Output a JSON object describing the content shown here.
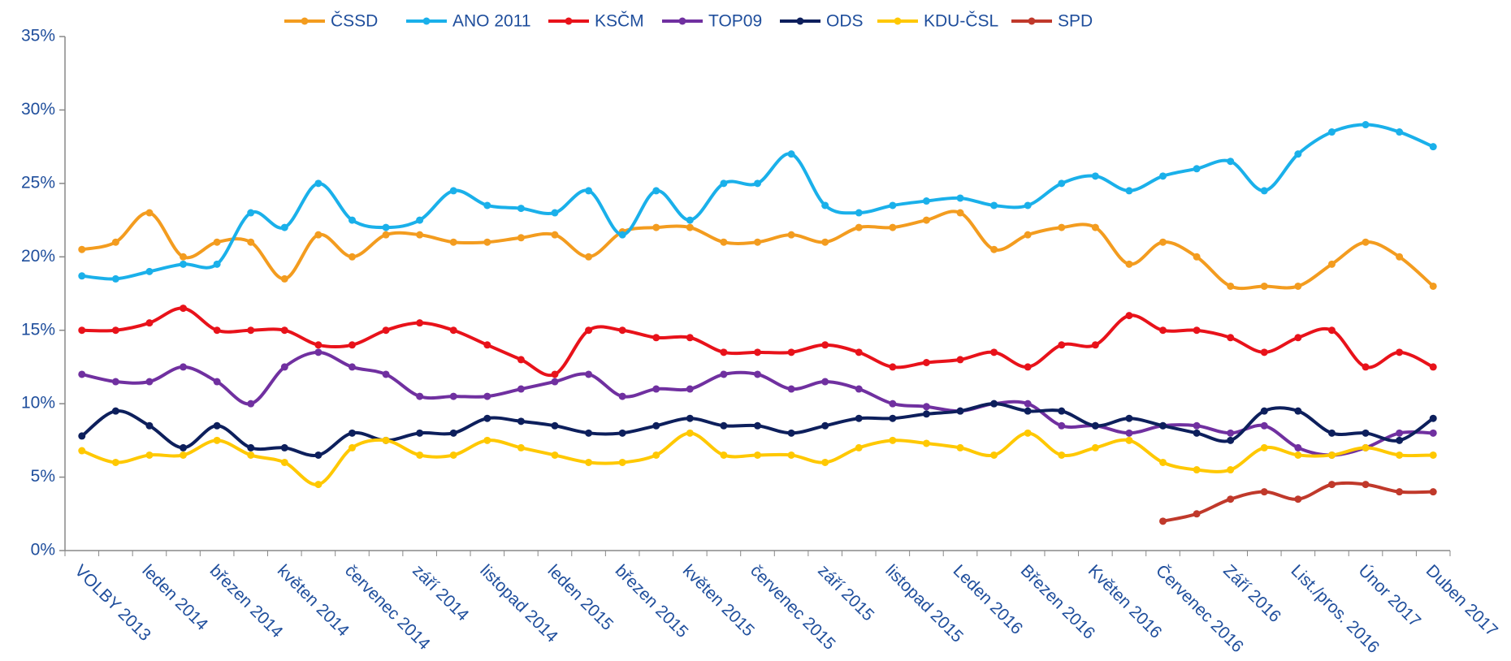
{
  "chart_data": {
    "type": "line",
    "categories": [
      "VOLBY 2013",
      null,
      "leden  2014",
      null,
      "březen 2014",
      null,
      "květen 2014",
      null,
      "červenec 2014",
      null,
      "září 2014",
      null,
      "listopad 2014",
      null,
      "leden 2015",
      null,
      "březen 2015",
      null,
      "květen 2015",
      null,
      "červenec 2015",
      null,
      "září 2015",
      null,
      "listopad 2015",
      null,
      "Leden 2016",
      null,
      "Březen 2016",
      null,
      "Květen 2016",
      null,
      "Červenec 2016",
      null,
      "Září 2016",
      null,
      "List./pros. 2016",
      null,
      "Únor 2017",
      null,
      "Duben 2017"
    ],
    "series": [
      {
        "name": "ČSSD",
        "color": "#f39c1f",
        "values": [
          20.5,
          21,
          23,
          20,
          21,
          21,
          18.5,
          21.5,
          20,
          21.5,
          21.5,
          21,
          21,
          21.3,
          21.5,
          20,
          21.7,
          22,
          22,
          21,
          21,
          21.5,
          21,
          22,
          22,
          22.5,
          23,
          20.5,
          21.5,
          22,
          22,
          19.5,
          21,
          20,
          18,
          18,
          18,
          19.5,
          21,
          20,
          18
        ]
      },
      {
        "name": "ANO 2011",
        "color": "#1ab0ea",
        "values": [
          18.7,
          18.5,
          19,
          19.5,
          19.5,
          23,
          22,
          25,
          22.5,
          22,
          22.5,
          24.5,
          23.5,
          23.3,
          23,
          24.5,
          21.5,
          24.5,
          22.5,
          25,
          25,
          27,
          23.5,
          23,
          23.5,
          23.8,
          24,
          23.5,
          23.5,
          25,
          25.5,
          24.5,
          25.5,
          26,
          26.5,
          24.5,
          27,
          28.5,
          29,
          28.5,
          27.5
        ]
      },
      {
        "name": "KSČM",
        "color": "#e8121a",
        "values": [
          15,
          15,
          15.5,
          16.5,
          15,
          15,
          15,
          14,
          14,
          15,
          15.5,
          15,
          14,
          13,
          12,
          15,
          15,
          14.5,
          14.5,
          13.5,
          13.5,
          13.5,
          14,
          13.5,
          12.5,
          12.8,
          13,
          13.5,
          12.5,
          14,
          14,
          16,
          15,
          15,
          14.5,
          13.5,
          14.5,
          15,
          12.5,
          13.5,
          12.5
        ]
      },
      {
        "name": "TOP09",
        "color": "#7030a0",
        "values": [
          12,
          11.5,
          11.5,
          12.5,
          11.5,
          10,
          12.5,
          13.5,
          12.5,
          12,
          10.5,
          10.5,
          10.5,
          11,
          11.5,
          12,
          10.5,
          11,
          11,
          12,
          12,
          11,
          11.5,
          11,
          10,
          9.8,
          9.5,
          10,
          10,
          8.5,
          8.5,
          8,
          8.5,
          8.5,
          8,
          8.5,
          7,
          6.5,
          7,
          8,
          8
        ]
      },
      {
        "name": "ODS",
        "color": "#0d1f5c",
        "values": [
          7.8,
          9.5,
          8.5,
          7,
          8.5,
          7,
          7,
          6.5,
          8,
          7.5,
          8,
          8,
          9,
          8.8,
          8.5,
          8,
          8,
          8.5,
          9,
          8.5,
          8.5,
          8,
          8.5,
          9,
          9,
          9.3,
          9.5,
          10,
          9.5,
          9.5,
          8.5,
          9,
          8.5,
          8,
          7.5,
          9.5,
          9.5,
          8,
          8,
          7.5,
          9
        ]
      },
      {
        "name": "KDU-ČSL",
        "color": "#ffc800",
        "values": [
          6.8,
          6,
          6.5,
          6.5,
          7.5,
          6.5,
          6,
          4.5,
          7,
          7.5,
          6.5,
          6.5,
          7.5,
          7,
          6.5,
          6,
          6,
          6.5,
          8,
          6.5,
          6.5,
          6.5,
          6,
          7,
          7.5,
          7.3,
          7,
          6.5,
          8,
          6.5,
          7,
          7.5,
          6,
          5.5,
          5.5,
          7,
          6.5,
          6.5,
          7,
          6.5,
          6.5
        ]
      },
      {
        "name": "SPD",
        "color": "#c0392b",
        "values": [
          null,
          null,
          null,
          null,
          null,
          null,
          null,
          null,
          null,
          null,
          null,
          null,
          null,
          null,
          null,
          null,
          null,
          null,
          null,
          null,
          null,
          null,
          null,
          null,
          null,
          null,
          null,
          null,
          null,
          null,
          null,
          null,
          2,
          2.5,
          3.5,
          4,
          3.5,
          4.5,
          4.5,
          4,
          4
        ]
      }
    ],
    "ylim": [
      0,
      35
    ],
    "yticks": [
      {
        "value": 0,
        "label": "0%"
      },
      {
        "value": 5,
        "label": "5%"
      },
      {
        "value": 10,
        "label": "10%"
      },
      {
        "value": 15,
        "label": "15%"
      },
      {
        "value": 20,
        "label": "20%"
      },
      {
        "value": 25,
        "label": "25%"
      },
      {
        "value": 30,
        "label": "30%"
      },
      {
        "value": 35,
        "label": "35%"
      }
    ],
    "legend": "top"
  }
}
